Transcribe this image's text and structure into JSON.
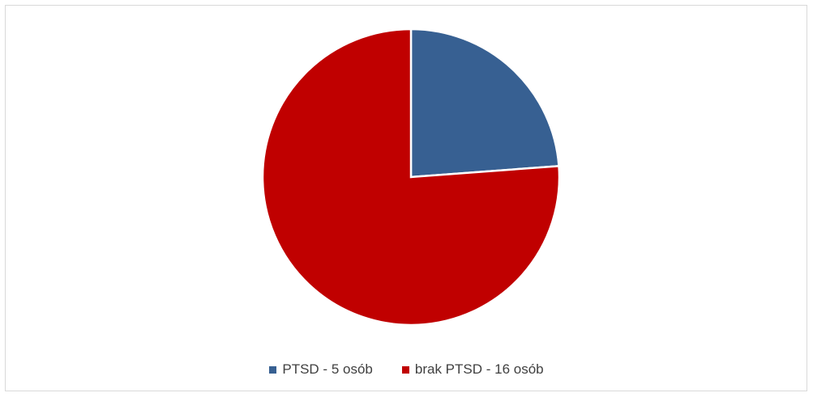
{
  "chart_data": {
    "type": "pie",
    "title": "",
    "slices": [
      {
        "label": "PTSD - 5 osób",
        "value": 5,
        "color": "#376092"
      },
      {
        "label": "brak PTSD - 16 osób",
        "value": 16,
        "color": "#c00000"
      }
    ],
    "start_angle_deg": 0,
    "direction": "clockwise",
    "legend_position": "bottom",
    "slice_border_color": "#ffffff"
  }
}
